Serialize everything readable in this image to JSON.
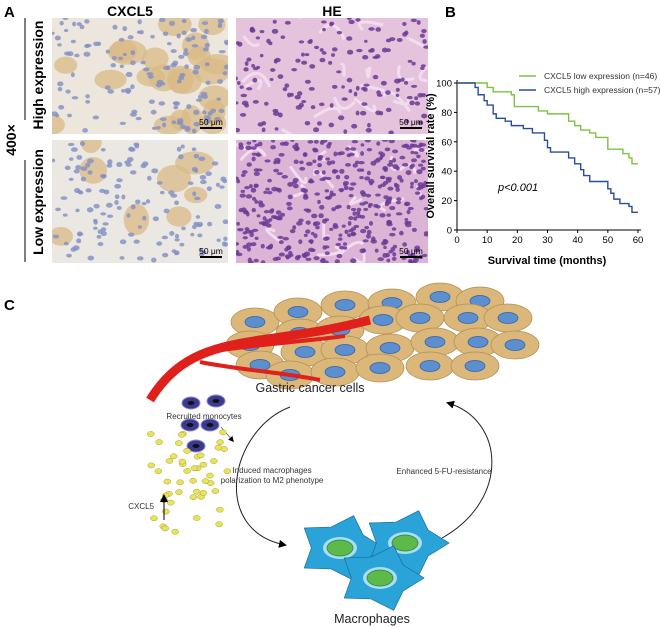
{
  "panel_a": {
    "letter": "A",
    "magnification": "400×",
    "columns": [
      "CXCL5",
      "HE"
    ],
    "rows": [
      "High expression",
      "Low expression"
    ],
    "scale_bar": "50 μm"
  },
  "panel_b": {
    "letter": "B"
  },
  "chart_data": {
    "type": "line",
    "subtype": "kaplan-meier step",
    "xlabel": "Survival time (months)",
    "ylabel": "Overall survival rate (%)",
    "xlim": [
      0,
      60
    ],
    "ylim": [
      0,
      100
    ],
    "xticks": [
      0,
      10,
      20,
      30,
      40,
      50,
      60
    ],
    "yticks": [
      0,
      20,
      40,
      60,
      80,
      100
    ],
    "grid": false,
    "legend_position": "top-right",
    "annotation": "p<0.001",
    "series": [
      {
        "name": "CXCL5 low expression (n=46)",
        "color": "#7dc242",
        "x": [
          0,
          10,
          12,
          18,
          19,
          27,
          30,
          37,
          39,
          41,
          44,
          46,
          50,
          55,
          57,
          58,
          60
        ],
        "y": [
          100,
          97,
          94,
          92,
          84,
          81,
          79,
          74,
          71,
          68,
          66,
          63,
          55,
          52,
          49,
          45,
          45
        ]
      },
      {
        "name": "CXCL5 high expression (n=57)",
        "color": "#2b4c9b",
        "x": [
          0,
          6,
          7,
          9,
          10,
          12,
          13,
          16,
          18,
          22,
          25,
          29,
          30,
          31,
          37,
          39,
          41,
          42,
          44,
          50,
          51,
          52,
          54,
          57,
          58,
          60
        ],
        "y": [
          100,
          97,
          92,
          88,
          85,
          79,
          76,
          74,
          71,
          69,
          66,
          61,
          56,
          53,
          49,
          45,
          41,
          37,
          33,
          28,
          25,
          21,
          18,
          16,
          12,
          12
        ]
      }
    ]
  },
  "panel_c": {
    "letter": "C",
    "labels": {
      "gastric": "Gastric cancer cells",
      "monocytes": "Recruited monocytes",
      "cxcl5": "CXCL5",
      "induced_line1": "Induced macrophages",
      "induced_line2": "polarization to M2 phenotype",
      "resistance": "Enhanced 5-FU-resistance",
      "macrophages": "Macrophages"
    },
    "colors": {
      "cancer_cell": "#dcb77a",
      "nucleus": "#5b8fd0",
      "vessel": "#e0201b",
      "monocyte": "#3b3a8f",
      "cxcl5_dot": "#e8e35a",
      "macrophage": "#2aa3d8",
      "macrophage_nucleus": "#5cba4a"
    }
  }
}
